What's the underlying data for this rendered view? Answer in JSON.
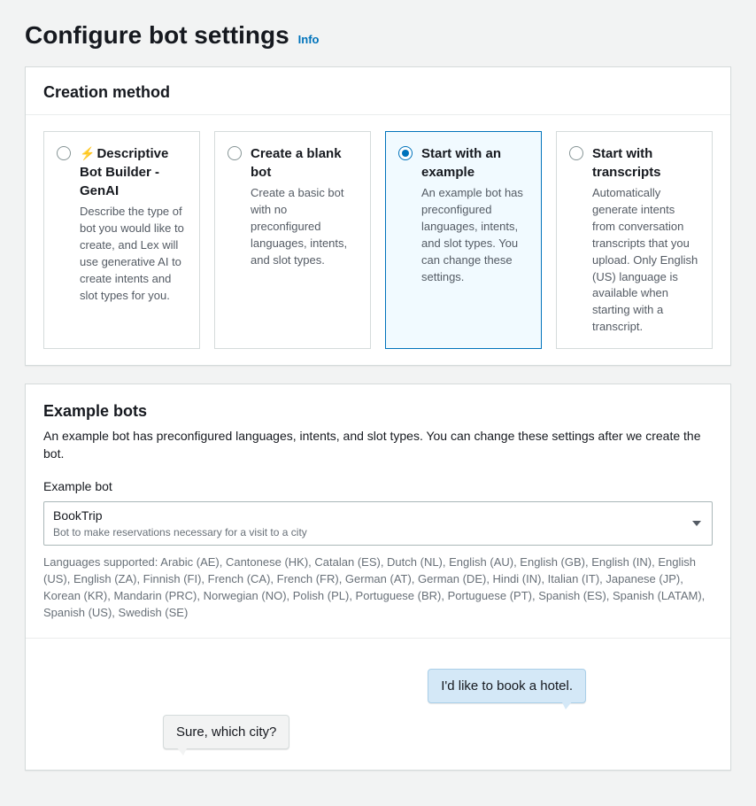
{
  "header": {
    "title": "Configure bot settings",
    "info": "Info"
  },
  "creation": {
    "title": "Creation method",
    "options": [
      {
        "title": "Descriptive Bot Builder - GenAI",
        "desc": "Describe the type of bot you would like to create, and Lex will use generative AI to create intents and slot types for you.",
        "has_lightning": true
      },
      {
        "title": "Create a blank bot",
        "desc": "Create a basic bot with no preconfigured languages, intents, and slot types."
      },
      {
        "title": "Start with an example",
        "desc": "An example bot has preconfigured languages, intents, and slot types. You can change these settings."
      },
      {
        "title": "Start with transcripts",
        "desc": "Automatically generate intents from conversation transcripts that you upload. Only English (US) language is available when starting with a transcript."
      }
    ],
    "selected_index": 2
  },
  "example": {
    "title": "Example bots",
    "desc": "An example bot has preconfigured languages, intents, and slot types. You can change these settings after we create the bot.",
    "field_label": "Example bot",
    "select": {
      "value": "BookTrip",
      "sub": "Bot to make reservations necessary for a visit to a city"
    },
    "languages_text": "Languages supported: Arabic (AE), Cantonese (HK), Catalan (ES), Dutch (NL), English (AU), English (GB), English (IN), English (US), English (ZA), Finnish (FI), French (CA), French (FR), German (AT), German (DE), Hindi (IN), Italian (IT), Japanese (JP), Korean (KR), Mandarin (PRC), Norwegian (NO), Polish (PL), Portuguese (BR), Portuguese (PT), Spanish (ES), Spanish (LATAM), Spanish (US), Swedish (SE)"
  },
  "chat": {
    "user_msg": "I'd like to book a hotel.",
    "bot_msg": "Sure, which city?"
  },
  "colors": {
    "background": "#f2f3f3",
    "panel_border": "#d5dbdb",
    "text": "#16191f",
    "muted": "#545b64",
    "link": "#0073bb",
    "selected_bg": "#f1faff",
    "bubble_user_bg": "#d4e8f7",
    "bubble_user_border": "#a9cfe8",
    "bubble_bot_bg": "#f2f3f3"
  }
}
